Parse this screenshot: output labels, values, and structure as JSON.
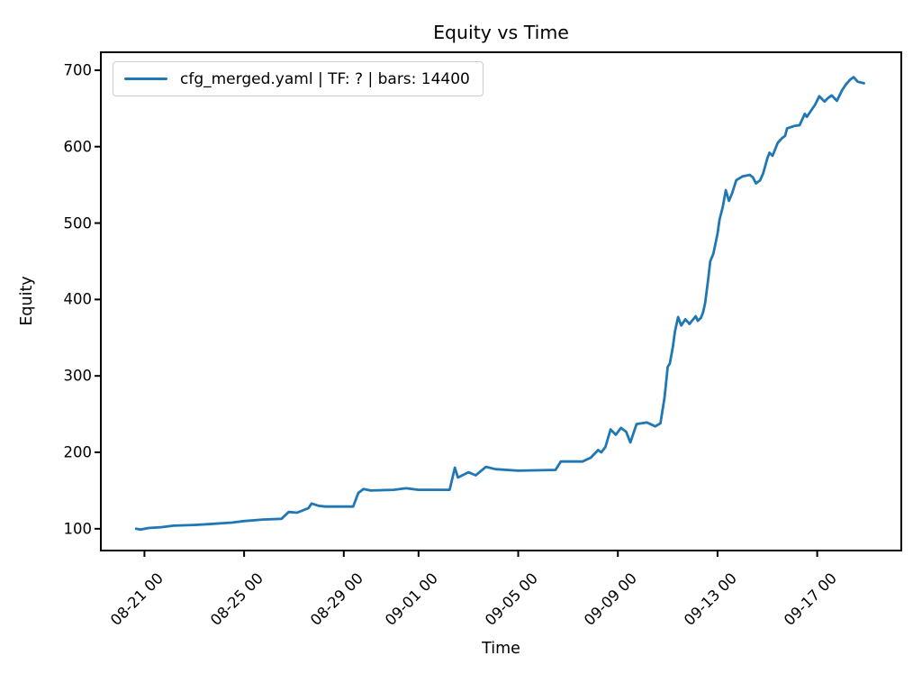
{
  "title": "Equity vs Time",
  "axes": {
    "xlabel": "Time",
    "ylabel": "Equity"
  },
  "legend": {
    "label": "cfg_merged.yaml | TF: ? | bars: 14400",
    "line_color": "#1f77b4"
  },
  "colors": {
    "line": "#1f77b4",
    "axis": "#000000",
    "legend_border": "#cccccc",
    "background": "#ffffff"
  },
  "chart_data": {
    "type": "line",
    "title": "Equity vs Time",
    "xlabel": "Time",
    "ylabel": "Equity",
    "grid": false,
    "legend_position": "upper left",
    "x_ticks": [
      "08-21 00",
      "08-25 00",
      "08-29 00",
      "09-01 00",
      "09-05 00",
      "09-09 00",
      "09-13 00",
      "09-17 00"
    ],
    "y_ticks": [
      100,
      200,
      300,
      400,
      500,
      600,
      700
    ],
    "ylim": [
      71.5,
      723.5
    ],
    "xlim": [
      "08-19 06:00",
      "09-20 09:00"
    ],
    "series": [
      {
        "name": "cfg_merged.yaml | TF: ? | bars: 14400",
        "color": "#1f77b4",
        "points": [
          [
            "08-20 16:00",
            100
          ],
          [
            "08-20 20:00",
            99
          ],
          [
            "08-21 04:00",
            101
          ],
          [
            "08-21 16:00",
            102
          ],
          [
            "08-22 04:00",
            104
          ],
          [
            "08-23 00:00",
            105
          ],
          [
            "08-23 14:00",
            106
          ],
          [
            "08-24 12:00",
            108
          ],
          [
            "08-25 00:00",
            110
          ],
          [
            "08-25 18:00",
            112
          ],
          [
            "08-26 12:00",
            113
          ],
          [
            "08-26 19:00",
            122
          ],
          [
            "08-27 03:00",
            121
          ],
          [
            "08-27 14:00",
            127
          ],
          [
            "08-27 17:00",
            133
          ],
          [
            "08-28 00:00",
            130
          ],
          [
            "08-28 06:00",
            129
          ],
          [
            "08-29 09:00",
            129
          ],
          [
            "08-29 14:00",
            147
          ],
          [
            "08-29 19:00",
            152
          ],
          [
            "08-30 02:00",
            150
          ],
          [
            "08-31 00:00",
            151
          ],
          [
            "08-31 12:00",
            153
          ],
          [
            "09-01 00:00",
            151
          ],
          [
            "09-02 06:00",
            151
          ],
          [
            "09-02 11:00",
            180
          ],
          [
            "09-02 14:00",
            167
          ],
          [
            "09-03 00:00",
            174
          ],
          [
            "09-03 07:00",
            170
          ],
          [
            "09-03 17:00",
            181
          ],
          [
            "09-04 02:00",
            178
          ],
          [
            "09-05 00:00",
            176
          ],
          [
            "09-06 12:00",
            177
          ],
          [
            "09-06 17:00",
            188
          ],
          [
            "09-07 14:00",
            188
          ],
          [
            "09-07 22:00",
            193
          ],
          [
            "09-08 05:00",
            203
          ],
          [
            "09-08 08:00",
            200
          ],
          [
            "09-08 12:00",
            207
          ],
          [
            "09-08 17:00",
            230
          ],
          [
            "09-08 22:00",
            223
          ],
          [
            "09-09 03:00",
            232
          ],
          [
            "09-09 08:00",
            227
          ],
          [
            "09-09 12:00",
            213
          ],
          [
            "09-09 18:00",
            237
          ],
          [
            "09-10 04:00",
            239
          ],
          [
            "09-10 12:00",
            234
          ],
          [
            "09-10 17:00",
            238
          ],
          [
            "09-10 21:00",
            272
          ],
          [
            "09-11 00:00",
            312
          ],
          [
            "09-11 02:00",
            316
          ],
          [
            "09-11 05:00",
            338
          ],
          [
            "09-11 07:00",
            358
          ],
          [
            "09-11 10:00",
            377
          ],
          [
            "09-11 13:00",
            366
          ],
          [
            "09-11 17:00",
            374
          ],
          [
            "09-11 21:00",
            368
          ],
          [
            "09-12 00:00",
            373
          ],
          [
            "09-12 03:00",
            378
          ],
          [
            "09-12 05:00",
            372
          ],
          [
            "09-12 08:00",
            376
          ],
          [
            "09-12 10:00",
            383
          ],
          [
            "09-12 12:00",
            395
          ],
          [
            "09-12 15:00",
            426
          ],
          [
            "09-12 17:00",
            450
          ],
          [
            "09-12 20:00",
            460
          ],
          [
            "09-13 00:00",
            486
          ],
          [
            "09-13 02:00",
            505
          ],
          [
            "09-13 05:00",
            521
          ],
          [
            "09-13 08:00",
            543
          ],
          [
            "09-13 11:00",
            529
          ],
          [
            "09-13 14:00",
            539
          ],
          [
            "09-13 18:00",
            556
          ],
          [
            "09-14 00:00",
            561
          ],
          [
            "09-14 07:00",
            563
          ],
          [
            "09-14 10:00",
            560
          ],
          [
            "09-14 13:00",
            552
          ],
          [
            "09-14 17:00",
            556
          ],
          [
            "09-14 20:00",
            565
          ],
          [
            "09-15 00:00",
            585
          ],
          [
            "09-15 02:00",
            592
          ],
          [
            "09-15 05:00",
            588
          ],
          [
            "09-15 10:00",
            605
          ],
          [
            "09-15 14:00",
            611
          ],
          [
            "09-15 17:00",
            614
          ],
          [
            "09-15 19:00",
            624
          ],
          [
            "09-16 02:00",
            627
          ],
          [
            "09-16 07:00",
            628
          ],
          [
            "09-16 10:00",
            637
          ],
          [
            "09-16 12:00",
            643
          ],
          [
            "09-16 14:00",
            639
          ],
          [
            "09-16 22:00",
            655
          ],
          [
            "09-17 02:00",
            666
          ],
          [
            "09-17 07:00",
            659
          ],
          [
            "09-17 10:00",
            663
          ],
          [
            "09-17 14:00",
            667
          ],
          [
            "09-17 19:00",
            660
          ],
          [
            "09-18 00:00",
            674
          ],
          [
            "09-18 04:00",
            682
          ],
          [
            "09-18 08:00",
            688
          ],
          [
            "09-18 11:00",
            691
          ],
          [
            "09-18 15:00",
            685
          ],
          [
            "09-18 21:00",
            683
          ]
        ]
      }
    ]
  }
}
